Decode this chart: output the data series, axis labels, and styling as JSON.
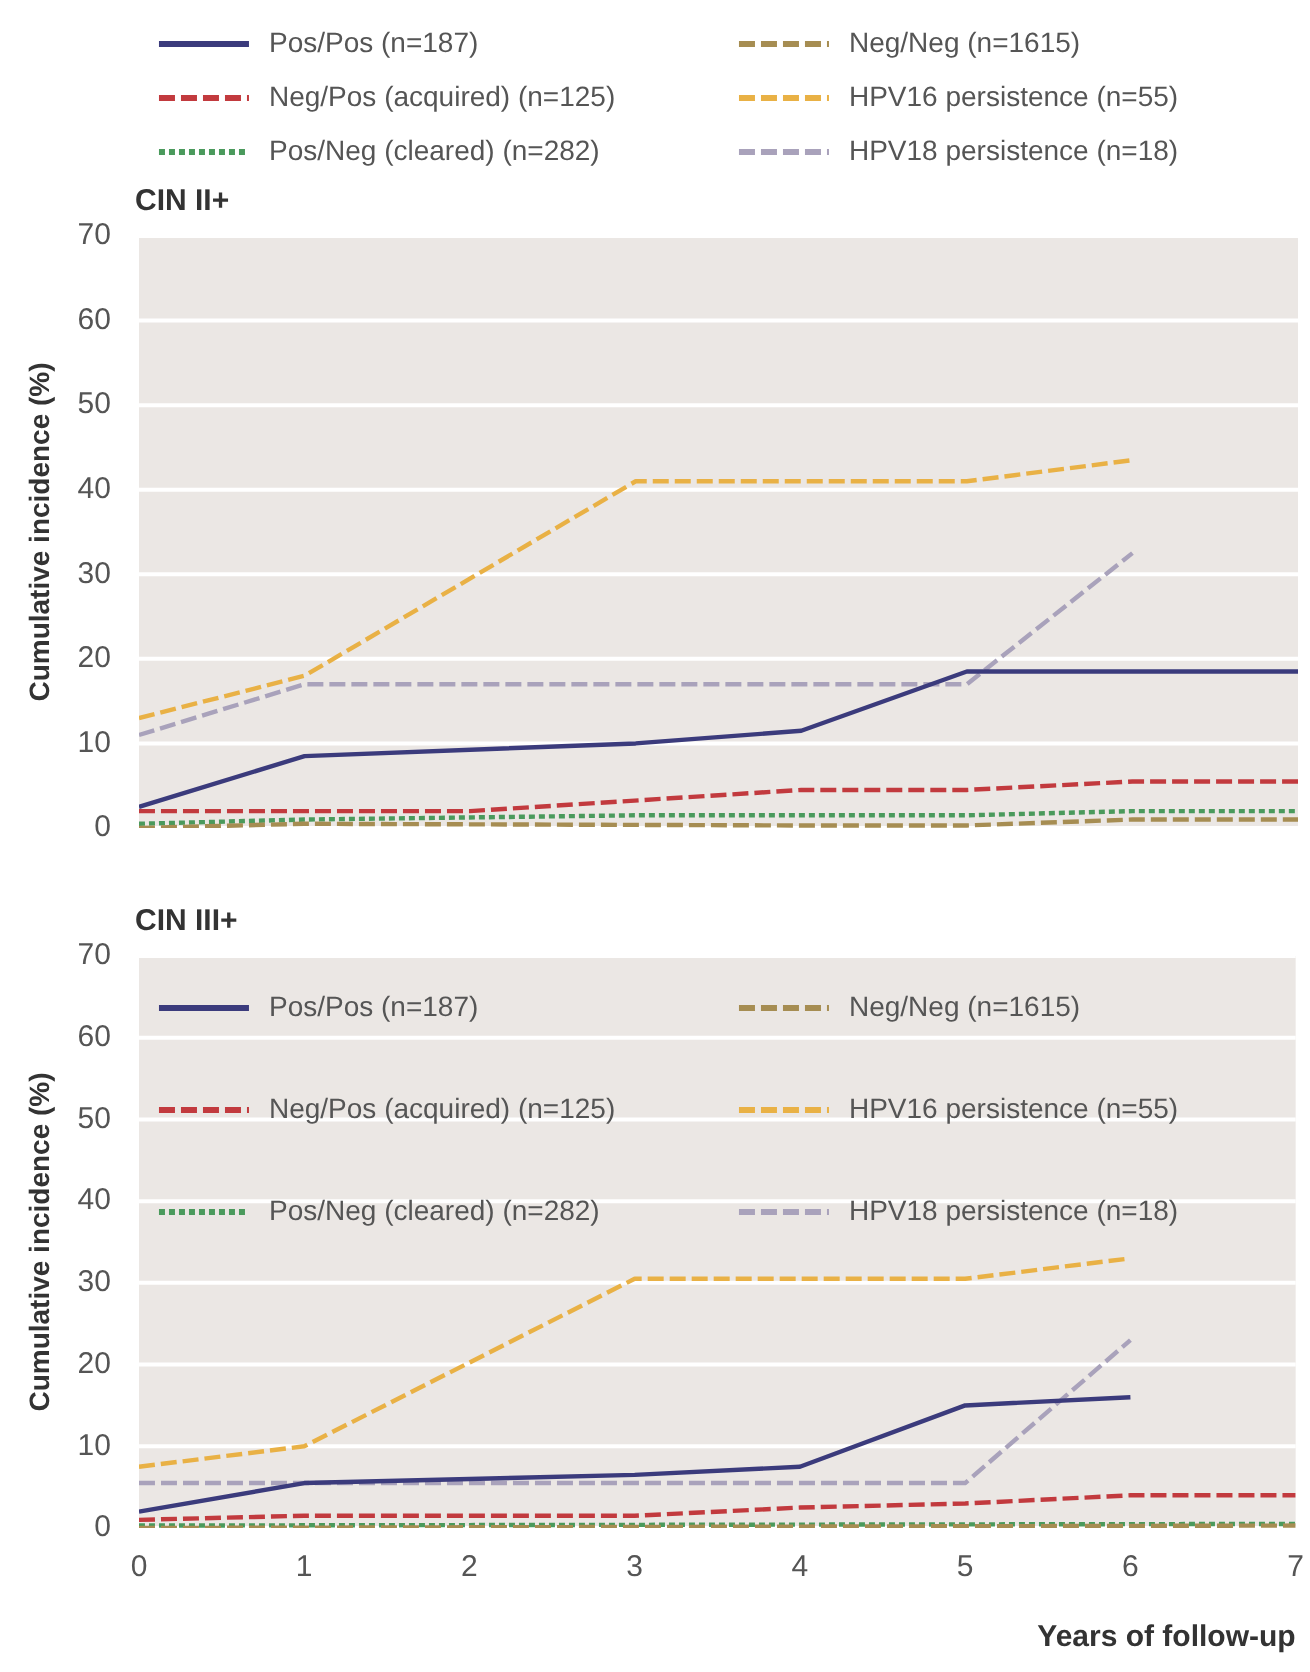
{
  "chart_data": [
    {
      "type": "line",
      "title": "CIN II+",
      "ylabel": "Cumulative incidence (%)",
      "xlim": [
        0,
        7
      ],
      "xticks": [
        0,
        1,
        2,
        3,
        4,
        5,
        6,
        7
      ],
      "ylim": [
        0,
        70
      ],
      "yticks": [
        0,
        10,
        20,
        30,
        40,
        50,
        60,
        70
      ],
      "tick_labels": "y",
      "grid": "y",
      "legend": "top",
      "marker": "none",
      "series": [
        {
          "name": "Pos/Pos (n=187)",
          "color": "#3b3b7c",
          "line_style": "solid",
          "x": [
            0,
            1,
            3,
            4,
            5,
            7
          ],
          "values": [
            2.5,
            8.5,
            10,
            11.5,
            18.5,
            18.5
          ]
        },
        {
          "name": "Neg/Neg (n=1615)",
          "color": "#a68d52",
          "line_style": "dashed",
          "x": [
            0,
            1,
            4,
            5,
            6,
            7
          ],
          "values": [
            0,
            0.5,
            0.3,
            0.3,
            1,
            1
          ]
        },
        {
          "name": "Neg/Pos (acquired) (n=125)",
          "color": "#c23a3e",
          "line_style": "dashed",
          "x": [
            0,
            2,
            4,
            5,
            6,
            7
          ],
          "values": [
            2,
            2,
            4.5,
            4.5,
            5.5,
            5.5
          ]
        },
        {
          "name": "HPV16 persistence (n=55)",
          "color": "#e9b145",
          "line_style": "dashed",
          "x": [
            0,
            1,
            3,
            5,
            6
          ],
          "values": [
            13,
            18,
            41,
            41,
            43.5
          ]
        },
        {
          "name": "Pos/Neg (cleared) (n=282)",
          "color": "#4a9a5c",
          "line_style": "dotted",
          "x": [
            0,
            1,
            3,
            5,
            6,
            7
          ],
          "values": [
            0.5,
            1,
            1.5,
            1.5,
            2,
            2
          ]
        },
        {
          "name": "HPV18 persistence (n=18)",
          "color": "#a9a2bb",
          "line_style": "dashed",
          "x": [
            0,
            1,
            5,
            6
          ],
          "values": [
            11,
            17,
            17,
            32.5
          ]
        }
      ]
    },
    {
      "type": "line",
      "title": "CIN III+",
      "ylabel": "Cumulative incidence (%)",
      "xlabel": "Years of follow-up",
      "xlim": [
        0,
        7
      ],
      "xticks": [
        0,
        1,
        2,
        3,
        4,
        5,
        6,
        7
      ],
      "ylim": [
        0,
        70
      ],
      "yticks": [
        0,
        10,
        20,
        30,
        40,
        50,
        60,
        70
      ],
      "grid": "y",
      "legend": "top",
      "marker": "none",
      "series": [
        {
          "name": "Pos/Pos (n=187)",
          "color": "#3b3b7c",
          "line_style": "solid",
          "x": [
            0,
            1,
            2,
            3,
            4,
            5,
            6
          ],
          "values": [
            2,
            5.5,
            6,
            6.5,
            7.5,
            15,
            16
          ]
        },
        {
          "name": "Neg/Neg (n=1615)",
          "color": "#a68d52",
          "line_style": "dashed",
          "x": [
            0,
            7
          ],
          "values": [
            0,
            0.3
          ]
        },
        {
          "name": "Neg/Pos (acquired) (n=125)",
          "color": "#c23a3e",
          "line_style": "dashed",
          "x": [
            0,
            1,
            3,
            4,
            5,
            6,
            7
          ],
          "values": [
            1,
            1.5,
            1.5,
            2.5,
            3,
            4,
            4
          ]
        },
        {
          "name": "HPV16 persistence (n=55)",
          "color": "#e9b145",
          "line_style": "dashed",
          "x": [
            0,
            1,
            3,
            5,
            6
          ],
          "values": [
            7.5,
            10,
            30.5,
            30.5,
            33
          ]
        },
        {
          "name": "Pos/Neg (cleared) (n=282)",
          "color": "#4a9a5c",
          "line_style": "dotted",
          "x": [
            0,
            7
          ],
          "values": [
            0.3,
            0.5
          ]
        },
        {
          "name": "HPV18 persistence (n=18)",
          "color": "#a9a2bb",
          "line_style": "dashed",
          "x": [
            0,
            5,
            6
          ],
          "values": [
            5.5,
            5.5,
            23
          ]
        }
      ]
    }
  ]
}
